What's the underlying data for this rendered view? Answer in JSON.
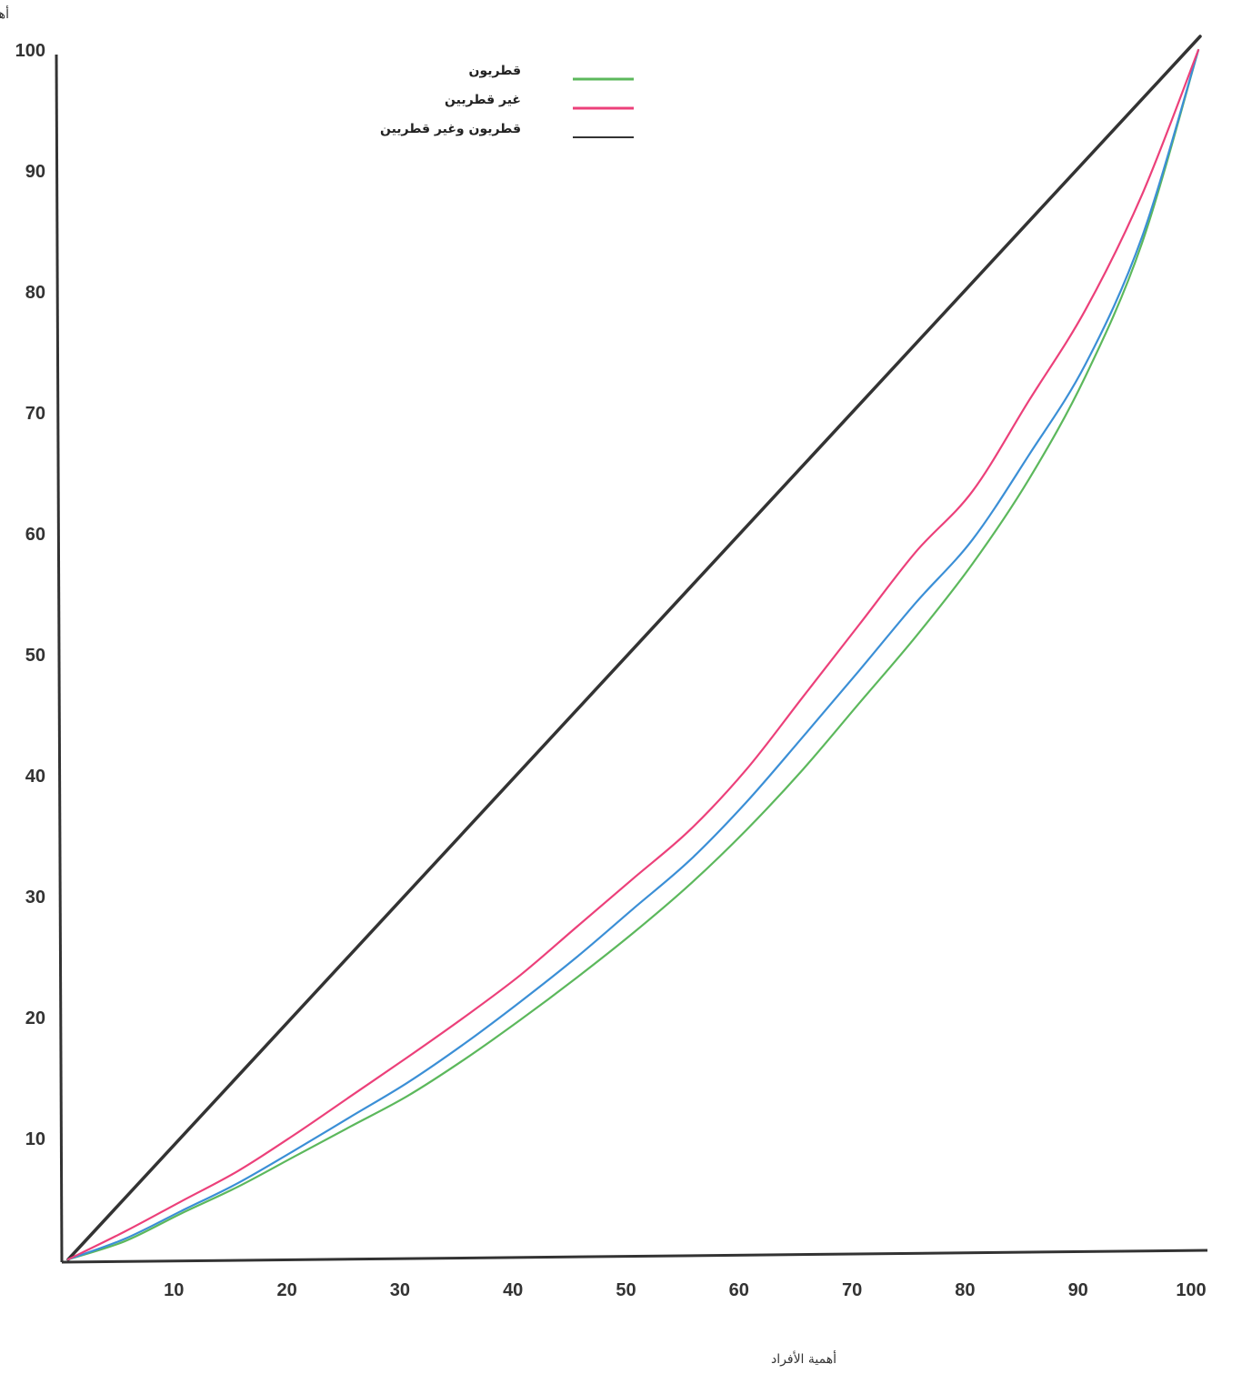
{
  "chart_data": {
    "type": "line",
    "title": "",
    "xlabel": "أهمية الأفراد",
    "ylabel": "أهمية الانفاق",
    "xlim": [
      0,
      100
    ],
    "ylim": [
      0,
      100
    ],
    "x_ticks": [
      "10",
      "20",
      "30",
      "40",
      "50",
      "60",
      "70",
      "80",
      "90",
      "100"
    ],
    "y_ticks": [
      "10",
      "20",
      "30",
      "40",
      "50",
      "60",
      "70",
      "80",
      "90",
      "100"
    ],
    "grid": false,
    "legend_position": "top-center",
    "series": [
      {
        "name": "قطريون",
        "color": "#5cb85c",
        "x": [
          0,
          5,
          10,
          15,
          20,
          25,
          30,
          35,
          40,
          45,
          50,
          55,
          60,
          65,
          70,
          75,
          80,
          85,
          90,
          95,
          100
        ],
        "y": [
          0,
          1.5,
          3.8,
          6.0,
          8.5,
          11.0,
          13.5,
          16.5,
          19.8,
          23.3,
          27.0,
          31.0,
          35.5,
          40.5,
          46.0,
          51.5,
          57.5,
          64.5,
          73.0,
          84.0,
          100
        ]
      },
      {
        "name": "غير قطريين",
        "color": "#ec407a",
        "x": [
          0,
          5,
          10,
          15,
          20,
          25,
          30,
          35,
          40,
          45,
          50,
          55,
          60,
          65,
          70,
          75,
          80,
          85,
          90,
          95,
          100
        ],
        "y": [
          0,
          2.3,
          4.8,
          7.3,
          10.3,
          13.5,
          16.7,
          20.0,
          23.5,
          27.5,
          31.5,
          35.5,
          40.5,
          46.5,
          52.5,
          58.5,
          63.5,
          71.0,
          78.5,
          88.0,
          100
        ]
      },
      {
        "name": "قطريون وغير قطريين",
        "color": "#333333",
        "x": [
          0,
          100
        ],
        "y": [
          0,
          100
        ]
      },
      {
        "color": "#3b8fd6",
        "x": [
          0,
          5,
          10,
          15,
          20,
          25,
          30,
          35,
          40,
          45,
          50,
          55,
          60,
          65,
          70,
          75,
          80,
          85,
          90,
          95,
          100
        ],
        "y": [
          0,
          1.7,
          4.0,
          6.3,
          9.0,
          11.8,
          14.6,
          17.8,
          21.3,
          25.0,
          29.0,
          33.0,
          37.8,
          43.2,
          48.7,
          54.3,
          59.5,
          66.5,
          74.0,
          84.5,
          100
        ]
      }
    ]
  }
}
